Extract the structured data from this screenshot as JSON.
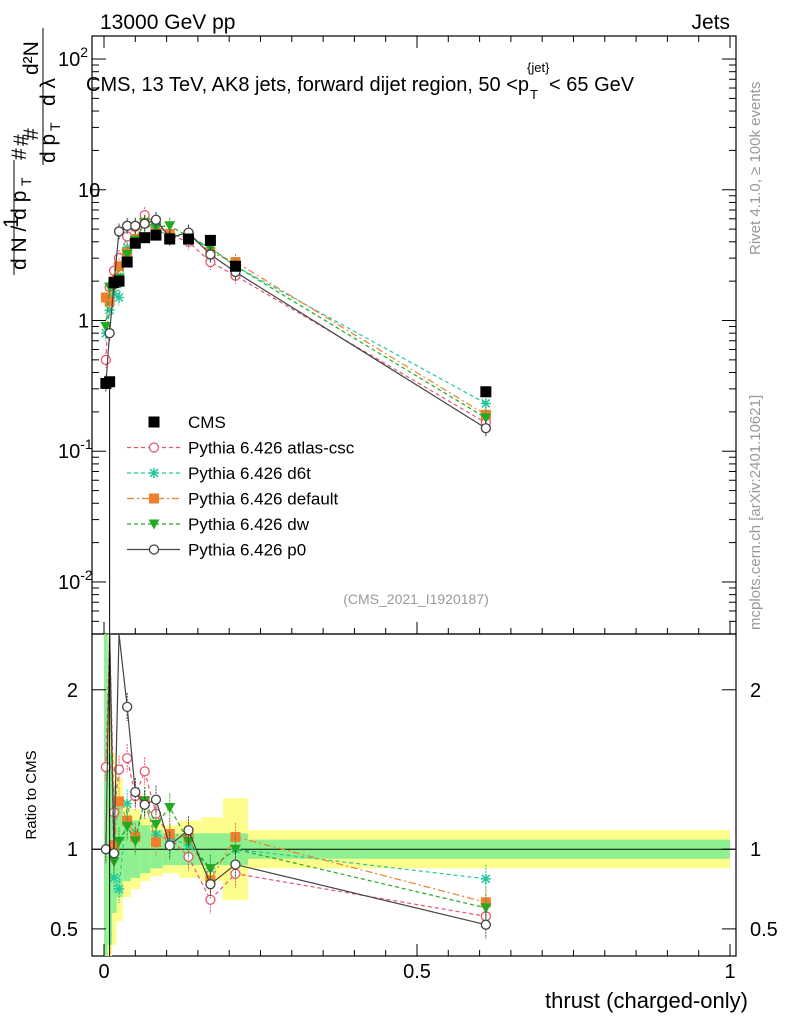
{
  "header": {
    "energy_label": "13000 GeV pp",
    "category_label": "Jets"
  },
  "side_labels": {
    "rivet": "Rivet 4.1.0, ≥ 100k events",
    "source": "mcplots.cern.ch [arXiv:2401.10621]"
  },
  "chart_data": {
    "type": "line",
    "title": "CMS, 13 TeV, AK8 jets, forward dijet region, 50 <p_T^{jet}< 65 GeV",
    "title_parts": {
      "pre": "CMS, 13 TeV, AK8 jets, forward dijet region, 50 <p",
      "sub": "T",
      "sup": "{jet}",
      "post": "< 65 GeV"
    },
    "analysis_label": "(CMS_2021_I1920187)",
    "xlabel": "thrust (charged-only)",
    "ylabel_main": "1/(dN/dp_T) d²N/(dp_T dλ)",
    "ylabel_ratio": "Ratio to CMS",
    "xlim": [
      -0.01,
      1.0
    ],
    "ylim_main": [
      0.004,
      150
    ],
    "ylim_ratio": [
      0.33,
      2.35
    ],
    "x_ticks": [
      {
        "value": 0,
        "label": "0"
      },
      {
        "value": 0.5,
        "label": "0.5"
      },
      {
        "value": 1,
        "label": "1"
      }
    ],
    "y_ticks_main": [
      {
        "value": 0.01,
        "base": "10",
        "exp": "-2"
      },
      {
        "value": 0.1,
        "base": "10",
        "exp": "-1"
      },
      {
        "value": 1,
        "base": "1",
        "exp": ""
      },
      {
        "value": 10,
        "base": "10",
        "exp": ""
      },
      {
        "value": 100,
        "base": "10",
        "exp": "2"
      }
    ],
    "y_ticks_ratio": [
      {
        "value": 0.5,
        "label": "0.5"
      },
      {
        "value": 1,
        "label": "1"
      },
      {
        "value": 2,
        "label": "2"
      }
    ],
    "x": [
      0.003,
      0.009,
      0.016,
      0.024,
      0.037,
      0.05,
      0.065,
      0.083,
      0.105,
      0.135,
      0.17,
      0.21,
      0.61
    ],
    "data": {
      "name": "CMS",
      "values": [
        0.33,
        0.34,
        1.95,
        2.0,
        2.8,
        3.9,
        4.3,
        4.5,
        4.2,
        4.2,
        4.1,
        2.6,
        0.285
      ],
      "band_edges": [
        0.0,
        0.006,
        0.013,
        0.02,
        0.03,
        0.043,
        0.058,
        0.074,
        0.094,
        0.12,
        0.155,
        0.19,
        0.23,
        1.0
      ],
      "band_inner": [
        2.0,
        0.6,
        0.4,
        0.3,
        0.2,
        0.18,
        0.15,
        0.12,
        0.1,
        0.1,
        0.1,
        0.1,
        0.06
      ],
      "band_outer": [
        2.0,
        0.9,
        0.6,
        0.45,
        0.3,
        0.25,
        0.2,
        0.17,
        0.15,
        0.18,
        0.2,
        0.32,
        0.12
      ]
    },
    "series": [
      {
        "name": "Pythia 6.426 atlas-csc",
        "color": "#e8556f",
        "marker": "open-circle",
        "dash": "4,3",
        "values": [
          0.5,
          1.8,
          2.4,
          3.0,
          4.4,
          5.2,
          6.4,
          5.5,
          4.5,
          4.0,
          2.8,
          2.2,
          0.165
        ]
      },
      {
        "name": "Pythia 6.426 d6t",
        "color": "#22c9a0",
        "marker": "star",
        "dash": "4,3",
        "values": [
          0.8,
          1.2,
          1.6,
          1.5,
          3.6,
          4.2,
          5.6,
          4.9,
          4.5,
          4.3,
          3.6,
          2.6,
          0.232
        ]
      },
      {
        "name": "Pythia 6.426 default",
        "color": "#f07f2e",
        "marker": "square",
        "dash": "7,3,2,3",
        "values": [
          1.5,
          1.4,
          2.0,
          2.6,
          3.3,
          4.2,
          5.6,
          4.7,
          4.6,
          4.5,
          3.3,
          2.8,
          0.19
        ]
      },
      {
        "name": "Pythia 6.426 dw",
        "color": "#22aa22",
        "marker": "triangle-down",
        "dash": "4,3",
        "values": [
          0.9,
          1.8,
          1.8,
          2.1,
          3.2,
          4.1,
          5.6,
          5.2,
          5.3,
          4.4,
          3.6,
          2.6,
          0.18
        ]
      },
      {
        "name": "Pythia 6.426 p0",
        "color": "#444444",
        "marker": "open-circle",
        "dash": "",
        "values": [
          0.33,
          0.8,
          1.9,
          4.8,
          5.3,
          5.3,
          5.5,
          5.9,
          4.3,
          4.7,
          3.2,
          2.35,
          0.15
        ]
      }
    ]
  }
}
